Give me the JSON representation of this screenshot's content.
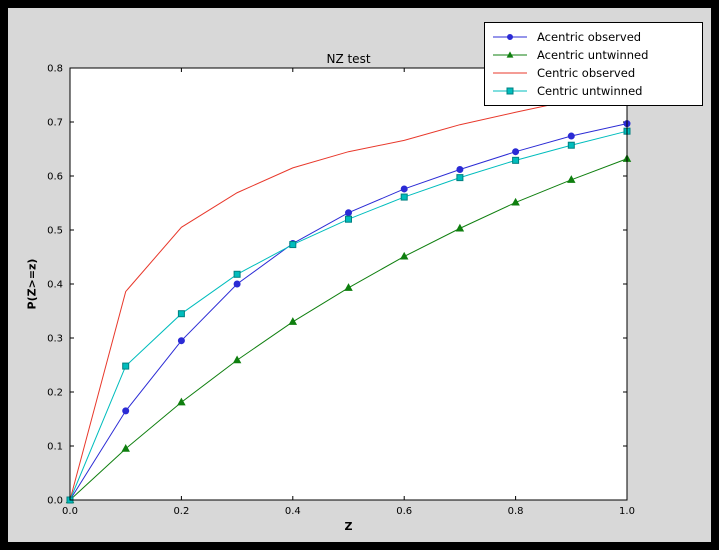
{
  "window": {
    "background": "#000000",
    "figure_background": "#d8d8d8",
    "axes_background": "#ffffff"
  },
  "chart_data": {
    "type": "line",
    "title": "NZ test",
    "xlabel": "Z",
    "ylabel": "P(Z>=z)",
    "xlim": [
      0.0,
      1.0
    ],
    "ylim": [
      0.0,
      0.8
    ],
    "xticks": [
      0.0,
      0.2,
      0.4,
      0.6,
      0.8,
      1.0
    ],
    "yticks": [
      0.0,
      0.1,
      0.2,
      0.3,
      0.4,
      0.5,
      0.6,
      0.7,
      0.8
    ],
    "grid": false,
    "legend_position": "upper right",
    "x": [
      0.0,
      0.1,
      0.2,
      0.3,
      0.4,
      0.5,
      0.6,
      0.7,
      0.8,
      0.9,
      1.0
    ],
    "series": [
      {
        "name": "Acentric observed",
        "color": "#2b2bd5",
        "marker": "circle",
        "values": [
          0.0,
          0.165,
          0.295,
          0.4,
          0.475,
          0.532,
          0.576,
          0.612,
          0.645,
          0.674,
          0.697
        ]
      },
      {
        "name": "Acentric untwinned",
        "color": "#0f7f0f",
        "marker": "triangle",
        "values": [
          0.0,
          0.095,
          0.181,
          0.259,
          0.33,
          0.393,
          0.451,
          0.503,
          0.551,
          0.593,
          0.632
        ]
      },
      {
        "name": "Centric observed",
        "color": "#e8382b",
        "marker": "none",
        "values": [
          0.0,
          0.386,
          0.505,
          0.569,
          0.615,
          0.645,
          0.666,
          0.695,
          0.718,
          0.74,
          0.76
        ]
      },
      {
        "name": "Centric untwinned",
        "color": "#00bdbd",
        "marker": "square",
        "values": [
          0.0,
          0.248,
          0.345,
          0.418,
          0.473,
          0.52,
          0.561,
          0.597,
          0.629,
          0.657,
          0.683
        ]
      }
    ]
  }
}
